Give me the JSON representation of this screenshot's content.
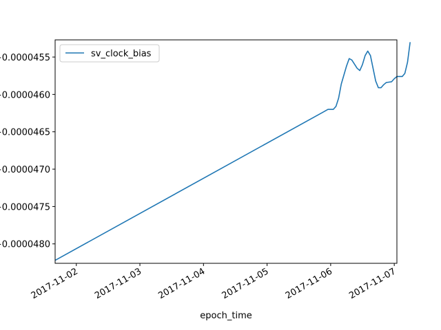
{
  "chart_data": {
    "type": "line",
    "xlabel": "epoch_time",
    "ylabel": "",
    "title": "",
    "x_type": "datetime",
    "xlim": [
      "2017-11-01 16:00",
      "2017-11-07 01:00"
    ],
    "ylim": [
      -4.826e-05,
      -4.527e-05
    ],
    "x_ticks": [
      "2017-11-02",
      "2017-11-03",
      "2017-11-04",
      "2017-11-05",
      "2017-11-06",
      "2017-11-07"
    ],
    "y_ticks": [
      -4.8e-05,
      -4.75e-05,
      -4.7e-05,
      -4.65e-05,
      -4.6e-05,
      -4.55e-05
    ],
    "y_tick_labels": [
      "−0.0000480",
      "−0.0000475",
      "−0.0000470",
      "−0.0000465",
      "−0.0000460",
      "−0.0000455"
    ],
    "legend": {
      "position": "upper-left",
      "entries": [
        "sv_clock_bias"
      ]
    },
    "colors": {
      "series": "#1f77b4"
    },
    "series": [
      {
        "name": "sv_clock_bias",
        "color": "#1f77b4",
        "points": [
          [
            "2017-11-01 16:00",
            -4.822e-05
          ],
          [
            "2017-11-05 21:00",
            -4.624e-05
          ],
          [
            "2017-11-05 23:00",
            -4.62e-05
          ],
          [
            "2017-11-06 01:00",
            -4.62e-05
          ],
          [
            "2017-11-06 02:00",
            -4.616e-05
          ],
          [
            "2017-11-06 03:00",
            -4.605e-05
          ],
          [
            "2017-11-06 04:00",
            -4.586e-05
          ],
          [
            "2017-11-06 06:00",
            -4.562e-05
          ],
          [
            "2017-11-06 07:00",
            -4.552e-05
          ],
          [
            "2017-11-06 08:00",
            -4.554e-05
          ],
          [
            "2017-11-06 10:00",
            -4.565e-05
          ],
          [
            "2017-11-06 11:00",
            -4.568e-05
          ],
          [
            "2017-11-06 12:00",
            -4.56e-05
          ],
          [
            "2017-11-06 13:00",
            -4.548e-05
          ],
          [
            "2017-11-06 14:00",
            -4.542e-05
          ],
          [
            "2017-11-06 15:00",
            -4.548e-05
          ],
          [
            "2017-11-06 16:00",
            -4.565e-05
          ],
          [
            "2017-11-06 17:00",
            -4.582e-05
          ],
          [
            "2017-11-06 18:00",
            -4.591e-05
          ],
          [
            "2017-11-06 19:00",
            -4.591e-05
          ],
          [
            "2017-11-06 20:00",
            -4.587e-05
          ],
          [
            "2017-11-06 21:00",
            -4.584e-05
          ],
          [
            "2017-11-06 23:00",
            -4.583e-05
          ],
          [
            "2017-11-07 00:00",
            -4.579e-05
          ],
          [
            "2017-11-07 01:00",
            -4.576e-05
          ],
          [
            "2017-11-07 03:00",
            -4.576e-05
          ],
          [
            "2017-11-07 04:00",
            -4.572e-05
          ],
          [
            "2017-11-07 05:00",
            -4.557e-05
          ],
          [
            "2017-11-07 06:00",
            -4.53e-05
          ]
        ]
      }
    ]
  }
}
